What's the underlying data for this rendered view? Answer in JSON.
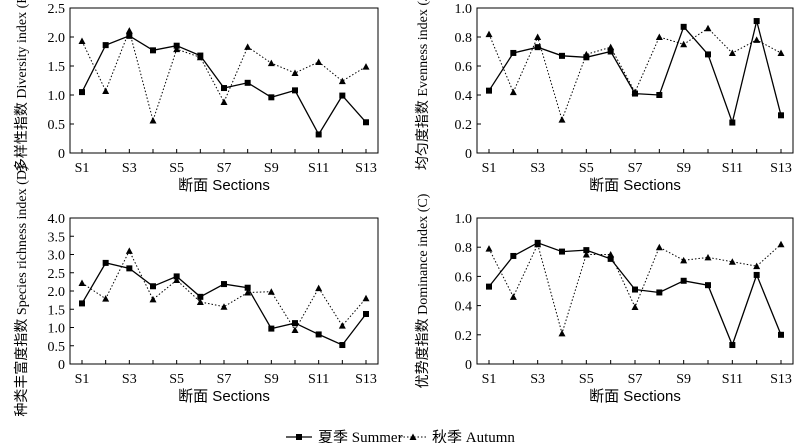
{
  "chart_data": [
    {
      "type": "line",
      "ylabel": "多样性指数 Diversity index (H)",
      "xlabel": "断面 Sections",
      "ylim": [
        0,
        2.5
      ],
      "yticks": [
        "0",
        "0.5",
        "1.0",
        "1.5",
        "2.0",
        "2.5"
      ],
      "categories": [
        "S1",
        "S2",
        "S3",
        "S4",
        "S5",
        "S6",
        "S7",
        "S8",
        "S9",
        "S10",
        "S11",
        "S12",
        "S13"
      ],
      "xticks": [
        "S1",
        "S3",
        "S5",
        "S7",
        "S9",
        "S11",
        "S13"
      ],
      "series": [
        {
          "name": "夏季 Summer",
          "values": [
            1.05,
            1.86,
            2.02,
            1.77,
            1.85,
            1.68,
            1.12,
            1.21,
            0.96,
            1.08,
            0.32,
            0.99,
            0.53
          ]
        },
        {
          "name": "秋季 Autumn",
          "values": [
            1.93,
            1.07,
            2.11,
            0.56,
            1.79,
            1.65,
            0.88,
            1.83,
            1.55,
            1.38,
            1.57,
            1.24,
            1.49
          ]
        }
      ]
    },
    {
      "type": "line",
      "ylabel": "均匀度指数 Evenness index (J)",
      "xlabel": "断面 Sections",
      "ylim": [
        0,
        1.0
      ],
      "yticks": [
        "0",
        "0.2",
        "0.4",
        "0.6",
        "0.8",
        "1.0"
      ],
      "categories": [
        "S1",
        "S2",
        "S3",
        "S4",
        "S5",
        "S6",
        "S7",
        "S8",
        "S9",
        "S10",
        "S11",
        "S12",
        "S13"
      ],
      "xticks": [
        "S1",
        "S3",
        "S5",
        "S7",
        "S9",
        "S11",
        "S13"
      ],
      "series": [
        {
          "name": "夏季 Summer",
          "values": [
            0.43,
            0.69,
            0.73,
            0.67,
            0.66,
            0.7,
            0.41,
            0.4,
            0.87,
            0.68,
            0.21,
            0.91,
            0.26
          ]
        },
        {
          "name": "秋季 Autumn",
          "values": [
            0.82,
            0.42,
            0.8,
            0.23,
            0.68,
            0.73,
            0.42,
            0.8,
            0.75,
            0.86,
            0.69,
            0.78,
            0.69
          ]
        }
      ]
    },
    {
      "type": "line",
      "ylabel": "种类丰富度指数 Species richness index (D)",
      "xlabel": "断面 Sections",
      "ylim": [
        0,
        4.0
      ],
      "yticks": [
        "0",
        "0.5",
        "1.0",
        "1.5",
        "2.0",
        "2.5",
        "3.0",
        "3.5",
        "4.0"
      ],
      "categories": [
        "S1",
        "S2",
        "S3",
        "S4",
        "S5",
        "S6",
        "S7",
        "S8",
        "S9",
        "S10",
        "S11",
        "S12",
        "S13"
      ],
      "xticks": [
        "S1",
        "S3",
        "S5",
        "S7",
        "S9",
        "S11",
        "S13"
      ],
      "series": [
        {
          "name": "夏季 Summer",
          "values": [
            1.66,
            2.77,
            2.62,
            2.13,
            2.4,
            1.84,
            2.19,
            2.09,
            0.97,
            1.12,
            0.81,
            0.52,
            1.37
          ]
        },
        {
          "name": "秋季 Autumn",
          "values": [
            2.22,
            1.79,
            3.1,
            1.77,
            2.3,
            1.7,
            1.57,
            1.96,
            1.98,
            0.93,
            2.08,
            1.05,
            1.8
          ]
        }
      ]
    },
    {
      "type": "line",
      "ylabel": "优势度指数 Dominance index (C)",
      "xlabel": "断面 Sections",
      "ylim": [
        0,
        1.0
      ],
      "yticks": [
        "0",
        "0.2",
        "0.4",
        "0.6",
        "0.8",
        "1.0"
      ],
      "categories": [
        "S1",
        "S2",
        "S3",
        "S4",
        "S5",
        "S6",
        "S7",
        "S8",
        "S9",
        "S10",
        "S11",
        "S12",
        "S13"
      ],
      "xticks": [
        "S1",
        "S3",
        "S5",
        "S7",
        "S9",
        "S11",
        "S13"
      ],
      "series": [
        {
          "name": "夏季 Summer",
          "values": [
            0.53,
            0.74,
            0.83,
            0.77,
            0.78,
            0.72,
            0.51,
            0.49,
            0.57,
            0.54,
            0.13,
            0.61,
            0.2
          ]
        },
        {
          "name": "秋季 Autumn",
          "values": [
            0.79,
            0.46,
            0.82,
            0.21,
            0.75,
            0.75,
            0.39,
            0.8,
            0.71,
            0.73,
            0.7,
            0.67,
            0.82
          ]
        }
      ]
    }
  ],
  "legend": {
    "summer_label": "夏季 Summer",
    "autumn_label": "秋季 Autumn"
  }
}
